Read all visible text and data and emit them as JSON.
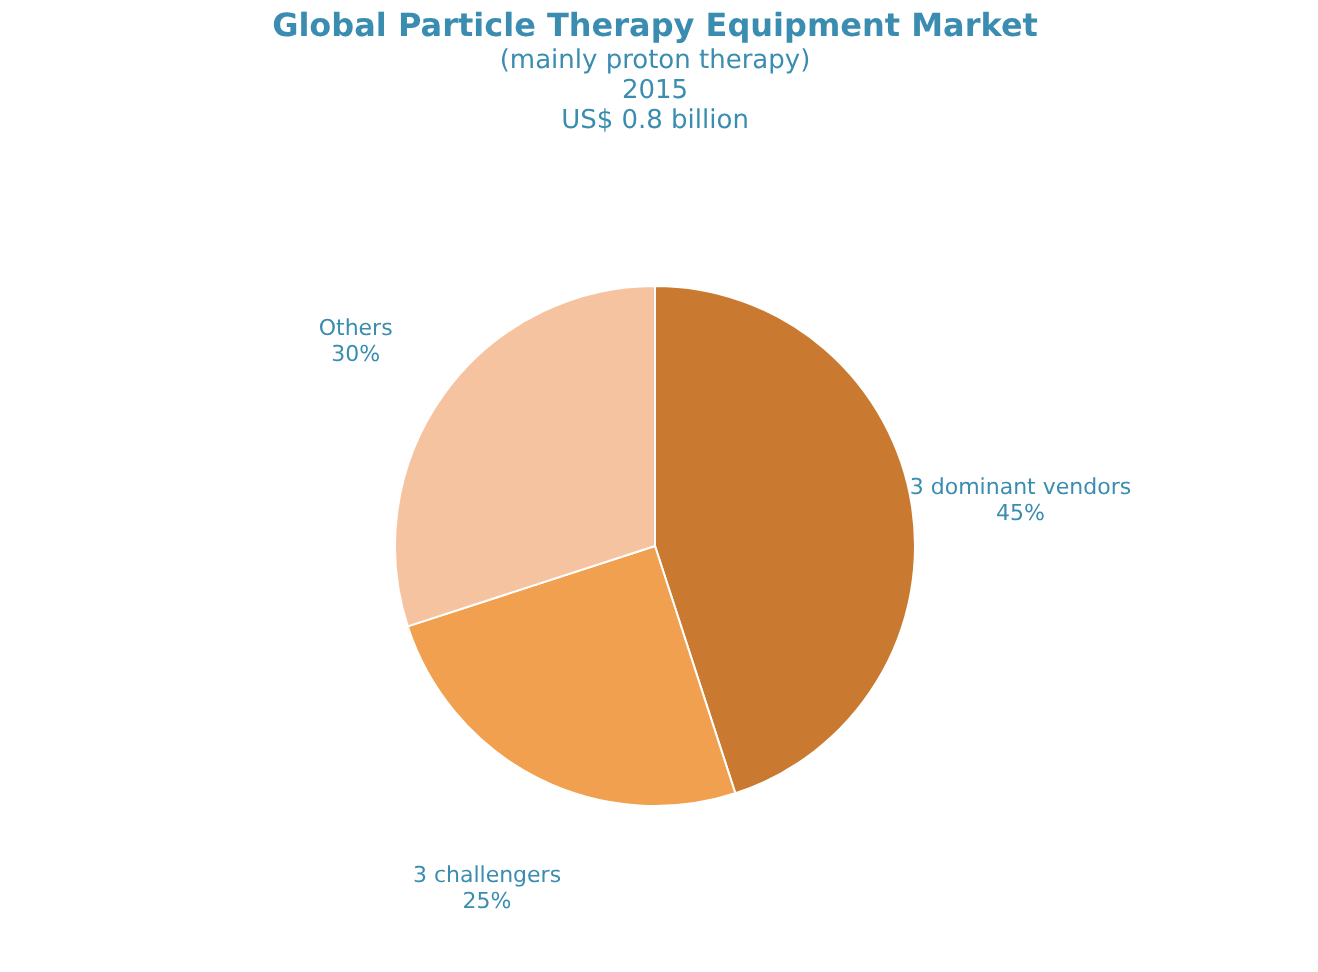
{
  "chart_data": {
    "type": "pie",
    "title": "Global Particle Therapy Equipment Market",
    "subtitle": [
      "(mainly proton therapy)",
      "2015",
      "US$ 0.8 billion"
    ],
    "categories": [
      "3 dominant vendors",
      "3 challengers",
      "Others"
    ],
    "values": [
      45,
      25,
      30
    ],
    "value_labels": [
      "45%",
      "25%",
      "30%"
    ],
    "colors": [
      "#c97a30",
      "#f0a04f",
      "#f6c3a0"
    ]
  }
}
